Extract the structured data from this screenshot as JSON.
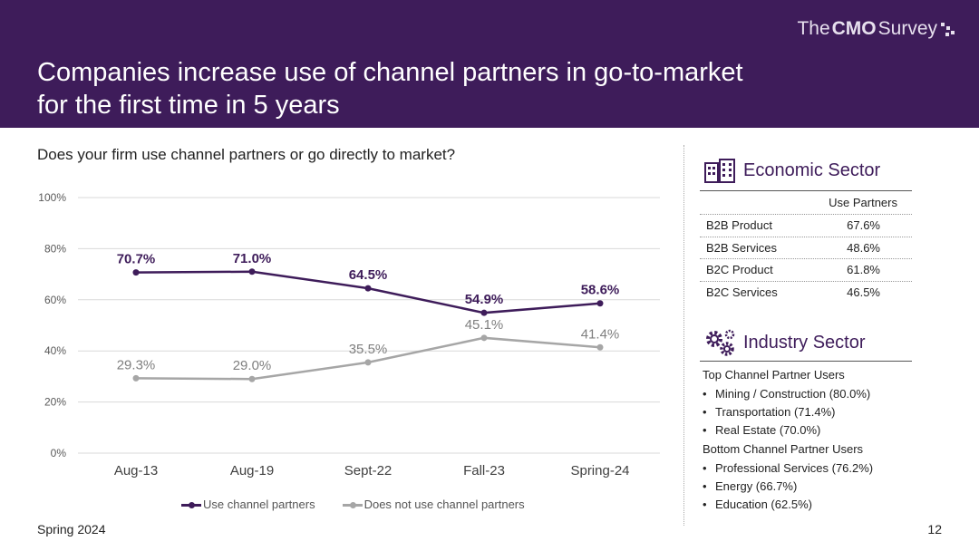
{
  "header": {
    "logo": {
      "the": "The",
      "cmo": "CMO",
      "survey": "Survey"
    },
    "title_line1": "Companies increase use of channel partners in go-to-market",
    "title_line2": "for the first time in 5 years"
  },
  "question": "Does your firm use channel partners or go directly to market?",
  "chart_data": {
    "type": "line",
    "title": "Does your firm use channel partners or go directly to market?",
    "categories": [
      "Aug-13",
      "Aug-19",
      "Sept-22",
      "Fall-23",
      "Spring-24"
    ],
    "series": [
      {
        "name": "Use channel partners",
        "values": [
          70.7,
          71.0,
          64.5,
          54.9,
          58.6
        ],
        "labels": [
          "70.7%",
          "71.0%",
          "64.5%",
          "54.9%",
          "58.6%"
        ],
        "color": "#3e1c5a"
      },
      {
        "name": "Does not use channel partners",
        "values": [
          29.3,
          29.0,
          35.5,
          45.1,
          41.4
        ],
        "labels": [
          "29.3%",
          "29.0%",
          "35.5%",
          "45.1%",
          "41.4%"
        ],
        "color": "#a6a6a6"
      }
    ],
    "ylim": [
      0,
      100
    ],
    "yticks": [
      0,
      20,
      40,
      60,
      80,
      100
    ],
    "ytick_labels": [
      "0%",
      "20%",
      "40%",
      "60%",
      "80%",
      "100%"
    ],
    "grid": true,
    "legend": "bottom",
    "xlabel": "",
    "ylabel": ""
  },
  "economic_sector": {
    "heading": "Economic Sector",
    "column_header": "Use Partners",
    "rows": [
      {
        "label": "B2B Product",
        "value": "67.6%"
      },
      {
        "label": "B2B Services",
        "value": "48.6%"
      },
      {
        "label": "B2C Product",
        "value": "61.8%"
      },
      {
        "label": "B2C Services",
        "value": "46.5%"
      }
    ]
  },
  "industry_sector": {
    "heading": "Industry Sector",
    "top_label": "Top Channel Partner Users",
    "top_items": [
      "Mining / Construction (80.0%)",
      "Transportation (71.4%)",
      "Real Estate (70.0%)"
    ],
    "bottom_label": "Bottom Channel Partner Users",
    "bottom_items": [
      "Professional Services (76.2%)",
      "Energy (66.7%)",
      "Education (62.5%)"
    ]
  },
  "footer": {
    "left": "Spring 2024",
    "right": "12"
  },
  "colors": {
    "brand": "#3e1c5a",
    "series_gray": "#a6a6a6"
  },
  "icons": {
    "economic": "buildings-icon",
    "industry": "gears-icon"
  }
}
